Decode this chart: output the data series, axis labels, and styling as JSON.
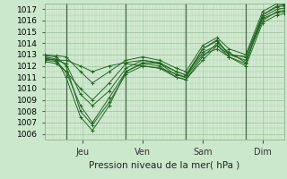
{
  "title": "Pression niveau de la mer( hPa )",
  "ylim": [
    1005.5,
    1017.5
  ],
  "yticks": [
    1006,
    1007,
    1008,
    1009,
    1010,
    1011,
    1012,
    1013,
    1014,
    1015,
    1016,
    1017
  ],
  "day_labels": [
    "Jeu",
    "Ven",
    "Sam",
    "Dim"
  ],
  "day_positions": [
    0.16,
    0.41,
    0.66,
    0.91
  ],
  "day_vlines": [
    0.09,
    0.34,
    0.59,
    0.84
  ],
  "background_color": "#cce8cc",
  "plot_bg_color": "#d4ecd4",
  "grid_major_color": "#88bb88",
  "grid_minor_color": "#aaccaa",
  "line_color": "#226622",
  "lines": [
    {
      "x": [
        0.0,
        0.05,
        0.09,
        0.15,
        0.2,
        0.27,
        0.34,
        0.41,
        0.48,
        0.55,
        0.59,
        0.66,
        0.72,
        0.77,
        0.84,
        0.91,
        0.97,
        1.0
      ],
      "y": [
        1012.8,
        1012.6,
        1011.0,
        1007.5,
        1006.3,
        1008.5,
        1011.5,
        1012.3,
        1012.2,
        1011.2,
        1011.0,
        1013.5,
        1014.3,
        1013.0,
        1012.8,
        1016.5,
        1017.2,
        1017.3
      ]
    },
    {
      "x": [
        0.0,
        0.05,
        0.09,
        0.15,
        0.2,
        0.27,
        0.34,
        0.41,
        0.48,
        0.55,
        0.59,
        0.66,
        0.72,
        0.77,
        0.84,
        0.91,
        0.97,
        1.0
      ],
      "y": [
        1012.6,
        1012.5,
        1012.2,
        1009.5,
        1008.5,
        1009.8,
        1011.8,
        1012.5,
        1012.3,
        1011.5,
        1011.2,
        1013.2,
        1013.8,
        1013.0,
        1012.5,
        1016.0,
        1016.8,
        1016.9
      ]
    },
    {
      "x": [
        0.0,
        0.05,
        0.09,
        0.15,
        0.2,
        0.27,
        0.34,
        0.41,
        0.48,
        0.55,
        0.59,
        0.66,
        0.72,
        0.77,
        0.84,
        0.91,
        0.97,
        1.0
      ],
      "y": [
        1012.5,
        1012.4,
        1011.5,
        1008.5,
        1007.0,
        1009.2,
        1011.5,
        1012.2,
        1012.0,
        1011.0,
        1010.8,
        1012.8,
        1014.0,
        1013.2,
        1012.3,
        1016.3,
        1017.0,
        1017.1
      ]
    },
    {
      "x": [
        0.0,
        0.05,
        0.09,
        0.15,
        0.2,
        0.27,
        0.34,
        0.41,
        0.48,
        0.55,
        0.59,
        0.66,
        0.72,
        0.77,
        0.84,
        0.91,
        0.97,
        1.0
      ],
      "y": [
        1012.9,
        1012.8,
        1012.0,
        1008.0,
        1006.8,
        1008.8,
        1011.3,
        1012.0,
        1011.8,
        1011.3,
        1011.0,
        1013.0,
        1013.5,
        1012.8,
        1012.2,
        1016.5,
        1017.3,
        1017.4
      ]
    },
    {
      "x": [
        0.0,
        0.05,
        0.09,
        0.15,
        0.2,
        0.27,
        0.34,
        0.41,
        0.48,
        0.55,
        0.59,
        0.66,
        0.72,
        0.77,
        0.84,
        0.91,
        0.97,
        1.0
      ],
      "y": [
        1012.4,
        1012.2,
        1011.5,
        1010.0,
        1009.0,
        1010.5,
        1012.2,
        1012.0,
        1011.8,
        1011.0,
        1010.8,
        1012.5,
        1013.8,
        1012.8,
        1012.0,
        1015.8,
        1016.5,
        1016.6
      ]
    },
    {
      "x": [
        0.0,
        0.05,
        0.09,
        0.15,
        0.2,
        0.27,
        0.34,
        0.41,
        0.48,
        0.55,
        0.59,
        0.66,
        0.72,
        0.77,
        0.84,
        0.91,
        0.97,
        1.0
      ],
      "y": [
        1013.0,
        1012.9,
        1012.8,
        1011.5,
        1010.5,
        1011.5,
        1012.5,
        1012.8,
        1012.5,
        1011.8,
        1011.5,
        1013.8,
        1014.5,
        1013.5,
        1013.0,
        1016.8,
        1017.5,
        1017.5
      ]
    },
    {
      "x": [
        0.0,
        0.05,
        0.09,
        0.15,
        0.2,
        0.27,
        0.34,
        0.41,
        0.48,
        0.55,
        0.59,
        0.66,
        0.72,
        0.77,
        0.84,
        0.91,
        0.97,
        1.0
      ],
      "y": [
        1012.7,
        1012.5,
        1012.5,
        1012.0,
        1011.5,
        1012.0,
        1012.3,
        1012.5,
        1012.2,
        1011.5,
        1011.2,
        1013.5,
        1014.2,
        1013.0,
        1012.8,
        1016.2,
        1016.7,
        1016.8
      ]
    }
  ]
}
